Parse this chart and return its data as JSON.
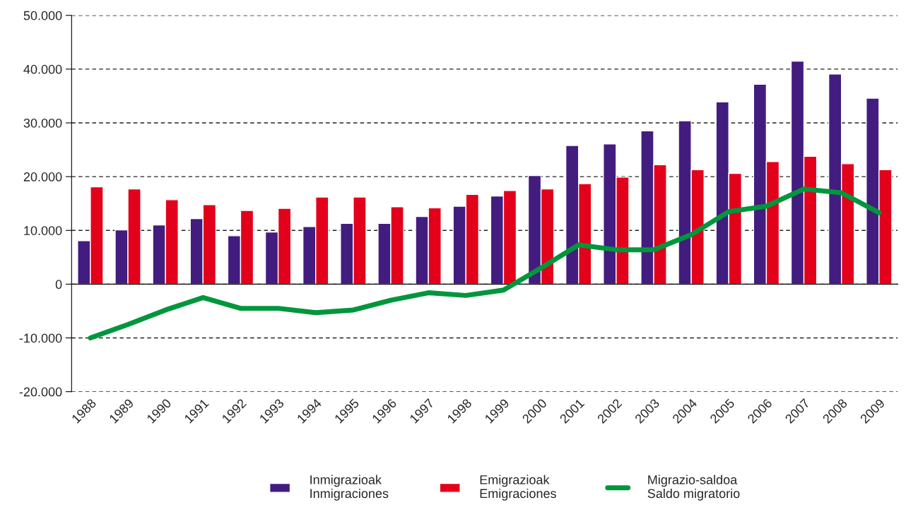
{
  "chart_data": {
    "type": "bar",
    "categories": [
      "1988",
      "1989",
      "1990",
      "1991",
      "1992",
      "1993",
      "1994",
      "1995",
      "1996",
      "1997",
      "1998",
      "1999",
      "2000",
      "2001",
      "2002",
      "2003",
      "2004",
      "2005",
      "2006",
      "2007",
      "2008",
      "2009"
    ],
    "series": [
      {
        "name": "Inmigrazioak\nInmigraciones",
        "color": "#421c7e",
        "values": [
          8100,
          10100,
          11000,
          12200,
          9000,
          9700,
          10700,
          11300,
          11300,
          12600,
          14500,
          16400,
          20200,
          25800,
          26100,
          28500,
          30400,
          33900,
          37200,
          41500,
          39100,
          34600
        ]
      },
      {
        "name": "Emigrazioak\nEmigraciones",
        "color": "#e2001a",
        "values": [
          18100,
          17700,
          15700,
          14800,
          13700,
          14100,
          16200,
          16200,
          14400,
          14200,
          16700,
          17400,
          17700,
          18700,
          19900,
          22200,
          21300,
          20600,
          22800,
          23800,
          22400,
          21300
        ]
      },
      {
        "name": "Migrazio-saldoa\nSaldo migratorio",
        "type": "line",
        "color": "#00963c",
        "values": [
          -10000,
          -7500,
          -4800,
          -2500,
          -4500,
          -4500,
          -5300,
          -4800,
          -3000,
          -1600,
          -2100,
          -1100,
          3000,
          7300,
          6400,
          6400,
          9200,
          13500,
          14500,
          17700,
          17000,
          13300
        ]
      }
    ],
    "ylim": [
      -20000,
      50000
    ],
    "yticks": [
      {
        "value": -20000,
        "label": "-20.000"
      },
      {
        "value": -10000,
        "label": "-10.000"
      },
      {
        "value": 0,
        "label": "0"
      },
      {
        "value": 10000,
        "label": "10.000"
      },
      {
        "value": 20000,
        "label": "20.000"
      },
      {
        "value": 30000,
        "label": "30.000"
      },
      {
        "value": 40000,
        "label": "40.000"
      },
      {
        "value": 50000,
        "label": "50.000"
      }
    ],
    "grid": "y",
    "legend": "bottom",
    "line_style": "solid",
    "marker": "none"
  }
}
